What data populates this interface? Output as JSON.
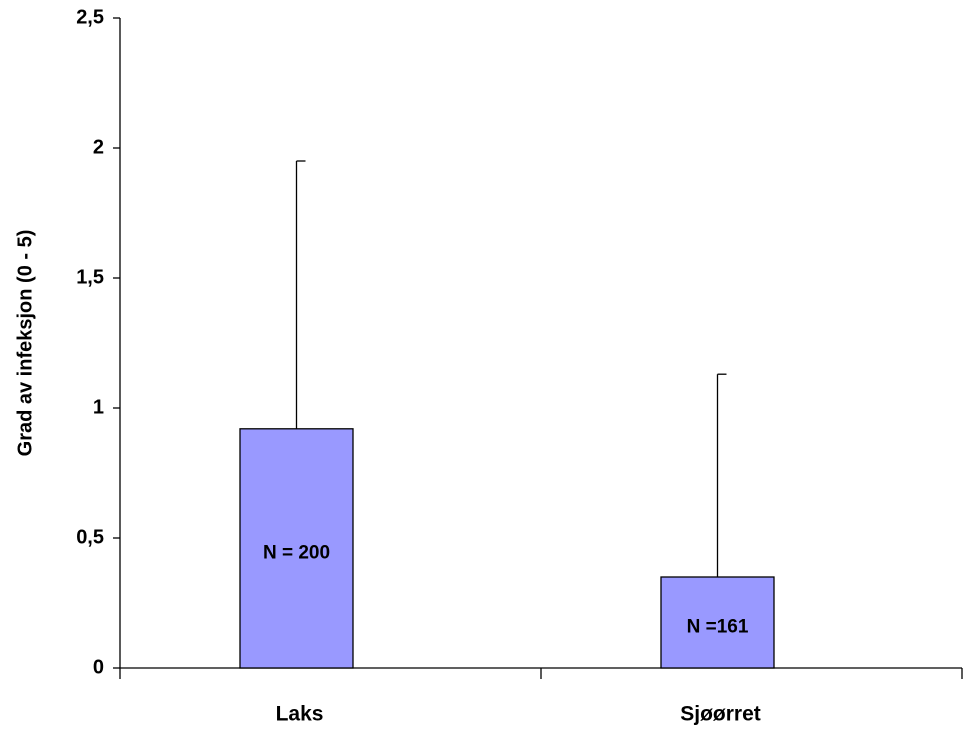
{
  "chart_data": {
    "type": "bar",
    "y_label": "Grad av infeksjon (0 - 5)",
    "categories": [
      "Laks",
      "Sjøørret"
    ],
    "values": [
      0.92,
      0.35
    ],
    "errors": [
      1.03,
      0.78
    ],
    "bar_labels": [
      "N = 200",
      "N =161"
    ],
    "color": "#9999ff",
    "ylim": [
      0,
      2.5
    ],
    "yticks": [
      0,
      {
        "value": 0.5,
        "label": "0,5"
      },
      1,
      {
        "value": 1.5,
        "label": "1,5"
      },
      2,
      {
        "value": 2.5,
        "label": "2,5"
      }
    ],
    "grid": false
  }
}
